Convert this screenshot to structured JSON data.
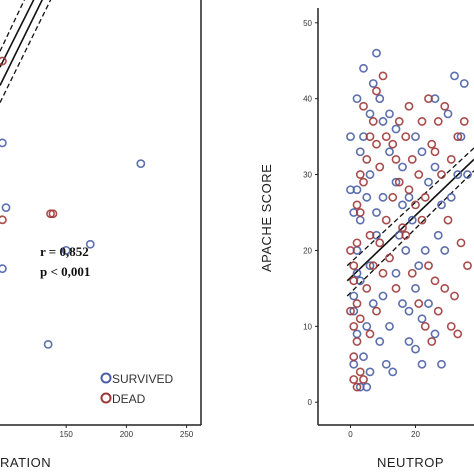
{
  "colors": {
    "survived": "#4a5fa5",
    "dead": "#a03838",
    "frame": "#222222",
    "line": "#111111"
  },
  "chart_data": [
    {
      "type": "scatter",
      "xlabel": "RATION",
      "ylabel": "",
      "xlim": [
        95,
        262
      ],
      "ylim": [
        -118,
        230
      ],
      "xticks": [
        150,
        200,
        250
      ],
      "annotations": {
        "r": "r = 0,852",
        "p": "p < 0,001"
      },
      "legend": [
        "SURVIVED",
        "DEAD"
      ],
      "legend_position": "bottom-right",
      "series": [
        {
          "name": "SURVIVED",
          "points": [
            [
              97,
              113
            ],
            [
              212,
              96
            ],
            [
              170,
              30
            ],
            [
              150,
              25
            ],
            [
              135,
              -52
            ],
            [
              97,
              10
            ],
            [
              100,
              60
            ]
          ]
        },
        {
          "name": "DEAD",
          "points": [
            [
              97,
              180
            ],
            [
              139,
              55
            ],
            [
              137,
              55
            ],
            [
              97,
              50
            ]
          ]
        }
      ],
      "fit_lines": [
        {
          "style": "solid",
          "x1": 95,
          "y1": 160,
          "x2": 135,
          "y2": 240
        },
        {
          "style": "solid",
          "x1": 95,
          "y1": 175,
          "x2": 128,
          "y2": 240
        },
        {
          "style": "dashed",
          "x1": 95,
          "y1": 146,
          "x2": 142,
          "y2": 240
        },
        {
          "style": "dashed",
          "x1": 95,
          "y1": 188,
          "x2": 120,
          "y2": 240
        }
      ]
    },
    {
      "type": "scatter",
      "xlabel": "NEUTROP",
      "ylabel": "APACHE SCORE",
      "xlim": [
        -10,
        38
      ],
      "ylim": [
        -3,
        53
      ],
      "yticks": [
        0,
        10,
        20,
        30,
        40,
        50
      ],
      "xticks": [
        0,
        20
      ],
      "series": [
        {
          "name": "SURVIVED",
          "points": [
            [
              1,
              5
            ],
            [
              1,
              12
            ],
            [
              2,
              9
            ],
            [
              1,
              14
            ],
            [
              2,
              20
            ],
            [
              3,
              16
            ],
            [
              1,
              25
            ],
            [
              2,
              28
            ],
            [
              3,
              33
            ],
            [
              4,
              35
            ],
            [
              6,
              38
            ],
            [
              7,
              42
            ],
            [
              8,
              46
            ],
            [
              9,
              40
            ],
            [
              10,
              37
            ],
            [
              12,
              33
            ],
            [
              14,
              29
            ],
            [
              16,
              31
            ],
            [
              18,
              27
            ],
            [
              20,
              35
            ],
            [
              22,
              33
            ],
            [
              24,
              29
            ],
            [
              26,
              31
            ],
            [
              28,
              26
            ],
            [
              30,
              38
            ],
            [
              32,
              43
            ],
            [
              34,
              35
            ],
            [
              6,
              18
            ],
            [
              8,
              22
            ],
            [
              10,
              14
            ],
            [
              12,
              10
            ],
            [
              14,
              17
            ],
            [
              16,
              13
            ],
            [
              18,
              8
            ],
            [
              20,
              15
            ],
            [
              22,
              11
            ],
            [
              24,
              13
            ],
            [
              26,
              9
            ],
            [
              28,
              5
            ],
            [
              9,
              8
            ],
            [
              11,
              5
            ],
            [
              13,
              4
            ],
            [
              5,
              2
            ],
            [
              3,
              2
            ],
            [
              0,
              28
            ],
            [
              0,
              35
            ],
            [
              2,
              40
            ],
            [
              4,
              44
            ],
            [
              6,
              30
            ],
            [
              8,
              25
            ],
            [
              10,
              27
            ],
            [
              5,
              10
            ],
            [
              7,
              13
            ],
            [
              15,
              22
            ],
            [
              17,
              20
            ],
            [
              19,
              24
            ],
            [
              21,
              18
            ],
            [
              23,
              20
            ],
            [
              27,
              22
            ],
            [
              29,
              20
            ],
            [
              31,
              27
            ],
            [
              33,
              30
            ],
            [
              35,
              42
            ],
            [
              3,
              24
            ],
            [
              5,
              27
            ],
            [
              36,
              30
            ],
            [
              12,
              38
            ],
            [
              14,
              36
            ],
            [
              16,
              26
            ],
            [
              18,
              12
            ],
            [
              26,
              40
            ],
            [
              20,
              7
            ],
            [
              22,
              5
            ],
            [
              4,
              6
            ],
            [
              6,
              4
            ],
            [
              2,
              17
            ]
          ]
        },
        {
          "name": "DEAD",
          "points": [
            [
              1,
              6
            ],
            [
              1,
              10
            ],
            [
              2,
              13
            ],
            [
              1,
              16
            ],
            [
              2,
              8
            ],
            [
              3,
              11
            ],
            [
              1,
              3
            ],
            [
              2,
              21
            ],
            [
              3,
              25
            ],
            [
              4,
              29
            ],
            [
              5,
              32
            ],
            [
              6,
              35
            ],
            [
              7,
              37
            ],
            [
              8,
              34
            ],
            [
              9,
              31
            ],
            [
              11,
              35
            ],
            [
              13,
              34
            ],
            [
              15,
              37
            ],
            [
              17,
              35
            ],
            [
              19,
              32
            ],
            [
              21,
              30
            ],
            [
              23,
              27
            ],
            [
              25,
              34
            ],
            [
              27,
              37
            ],
            [
              29,
              39
            ],
            [
              31,
              32
            ],
            [
              33,
              35
            ],
            [
              35,
              37
            ],
            [
              5,
              15
            ],
            [
              7,
              18
            ],
            [
              9,
              21
            ],
            [
              11,
              24
            ],
            [
              13,
              27
            ],
            [
              15,
              29
            ],
            [
              17,
              22
            ],
            [
              19,
              17
            ],
            [
              21,
              13
            ],
            [
              23,
              10
            ],
            [
              25,
              8
            ],
            [
              27,
              12
            ],
            [
              29,
              15
            ],
            [
              31,
              10
            ],
            [
              33,
              9
            ],
            [
              3,
              4
            ],
            [
              4,
              3
            ],
            [
              2,
              2
            ],
            [
              6,
              9
            ],
            [
              8,
              12
            ],
            [
              10,
              17
            ],
            [
              12,
              19
            ],
            [
              14,
              15
            ],
            [
              16,
              23
            ],
            [
              18,
              28
            ],
            [
              20,
              26
            ],
            [
              22,
              24
            ],
            [
              24,
              18
            ],
            [
              26,
              16
            ],
            [
              28,
              30
            ],
            [
              30,
              24
            ],
            [
              32,
              14
            ],
            [
              34,
              21
            ],
            [
              4,
              39
            ],
            [
              8,
              41
            ],
            [
              10,
              43
            ],
            [
              14,
              32
            ],
            [
              36,
              18
            ],
            [
              1,
              18
            ],
            [
              2,
              26
            ],
            [
              3,
              30
            ],
            [
              18,
              39
            ],
            [
              22,
              37
            ],
            [
              24,
              40
            ],
            [
              26,
              33
            ],
            [
              6,
              22
            ],
            [
              0,
              12
            ],
            [
              0,
              20
            ]
          ]
        }
      ],
      "fit_lines": [
        {
          "style": "solid",
          "x1": -1,
          "y1": 16,
          "x2": 38,
          "y2": 32
        },
        {
          "style": "dashed",
          "x1": -1,
          "y1": 18,
          "x2": 38,
          "y2": 33.5
        },
        {
          "style": "dashed",
          "x1": -1,
          "y1": 14,
          "x2": 38,
          "y2": 30.5
        }
      ]
    }
  ]
}
